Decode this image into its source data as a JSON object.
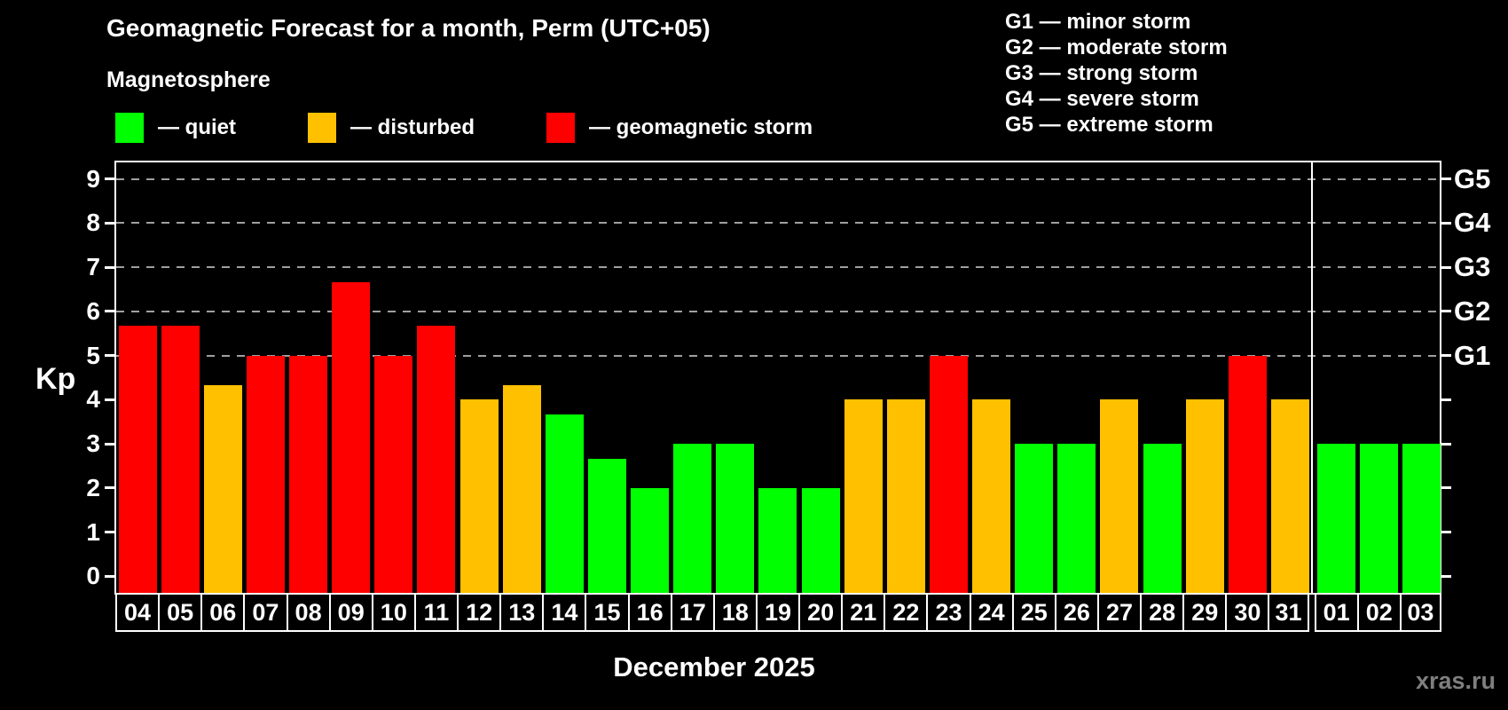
{
  "header": {
    "title": "Geomagnetic Forecast for a month, Perm (UTC+05)",
    "subtitle": "Magnetosphere"
  },
  "legend": {
    "quiet": "— quiet",
    "disturbed": "— disturbed",
    "storm": "— geomagnetic storm"
  },
  "g_legend": [
    "G1 — minor storm",
    "G2 — moderate storm",
    "G3 — strong storm",
    "G4 — severe storm",
    "G5 — extreme storm"
  ],
  "watermark": "xras.ru",
  "colors": {
    "quiet": "#00ff00",
    "disturbed": "#ffc000",
    "storm": "#ff0000",
    "background": "#000000",
    "axis": "#ffffff",
    "gridline": "#a0a0a0",
    "watermark_color": "#7f7f7f"
  },
  "chart_data": {
    "type": "bar",
    "title": "Geomagnetic Forecast for a month, Perm (UTC+05)",
    "subtitle": "Magnetosphere",
    "ylabel": "Kp",
    "xlabel": "December 2025",
    "ylim": [
      0,
      9
    ],
    "y_ticks": [
      0,
      1,
      2,
      3,
      4,
      5,
      6,
      7,
      8,
      9
    ],
    "grid": "dashed horizontal lines at Kp 5,6,7,8,9 (G1–G5 levels)",
    "legend_position": "top-left",
    "g_scale": [
      {
        "label": "G1",
        "kp": 5
      },
      {
        "label": "G2",
        "kp": 6
      },
      {
        "label": "G3",
        "kp": 7
      },
      {
        "label": "G4",
        "kp": 8
      },
      {
        "label": "G5",
        "kp": 9
      }
    ],
    "december_bar_count": 28,
    "bars": [
      {
        "day": "04",
        "kp": 5.67,
        "status": "storm"
      },
      {
        "day": "05",
        "kp": 5.67,
        "status": "storm"
      },
      {
        "day": "06",
        "kp": 4.33,
        "status": "disturbed"
      },
      {
        "day": "07",
        "kp": 5.0,
        "status": "storm"
      },
      {
        "day": "08",
        "kp": 5.0,
        "status": "storm"
      },
      {
        "day": "09",
        "kp": 6.67,
        "status": "storm"
      },
      {
        "day": "10",
        "kp": 5.0,
        "status": "storm"
      },
      {
        "day": "11",
        "kp": 5.67,
        "status": "storm"
      },
      {
        "day": "12",
        "kp": 4.0,
        "status": "disturbed"
      },
      {
        "day": "13",
        "kp": 4.33,
        "status": "disturbed"
      },
      {
        "day": "14",
        "kp": 3.67,
        "status": "quiet"
      },
      {
        "day": "15",
        "kp": 2.67,
        "status": "quiet"
      },
      {
        "day": "16",
        "kp": 2.0,
        "status": "quiet"
      },
      {
        "day": "17",
        "kp": 3.0,
        "status": "quiet"
      },
      {
        "day": "18",
        "kp": 3.0,
        "status": "quiet"
      },
      {
        "day": "19",
        "kp": 2.0,
        "status": "quiet"
      },
      {
        "day": "20",
        "kp": 2.0,
        "status": "quiet"
      },
      {
        "day": "21",
        "kp": 4.0,
        "status": "disturbed"
      },
      {
        "day": "22",
        "kp": 4.0,
        "status": "disturbed"
      },
      {
        "day": "23",
        "kp": 5.0,
        "status": "storm"
      },
      {
        "day": "24",
        "kp": 4.0,
        "status": "disturbed"
      },
      {
        "day": "25",
        "kp": 3.0,
        "status": "quiet"
      },
      {
        "day": "26",
        "kp": 3.0,
        "status": "quiet"
      },
      {
        "day": "27",
        "kp": 4.0,
        "status": "disturbed"
      },
      {
        "day": "28",
        "kp": 3.0,
        "status": "quiet"
      },
      {
        "day": "29",
        "kp": 4.0,
        "status": "disturbed"
      },
      {
        "day": "30",
        "kp": 5.0,
        "status": "storm"
      },
      {
        "day": "31",
        "kp": 4.0,
        "status": "disturbed"
      },
      {
        "day": "01",
        "kp": 3.0,
        "status": "quiet"
      },
      {
        "day": "02",
        "kp": 3.0,
        "status": "quiet"
      },
      {
        "day": "03",
        "kp": 3.0,
        "status": "quiet"
      }
    ]
  }
}
